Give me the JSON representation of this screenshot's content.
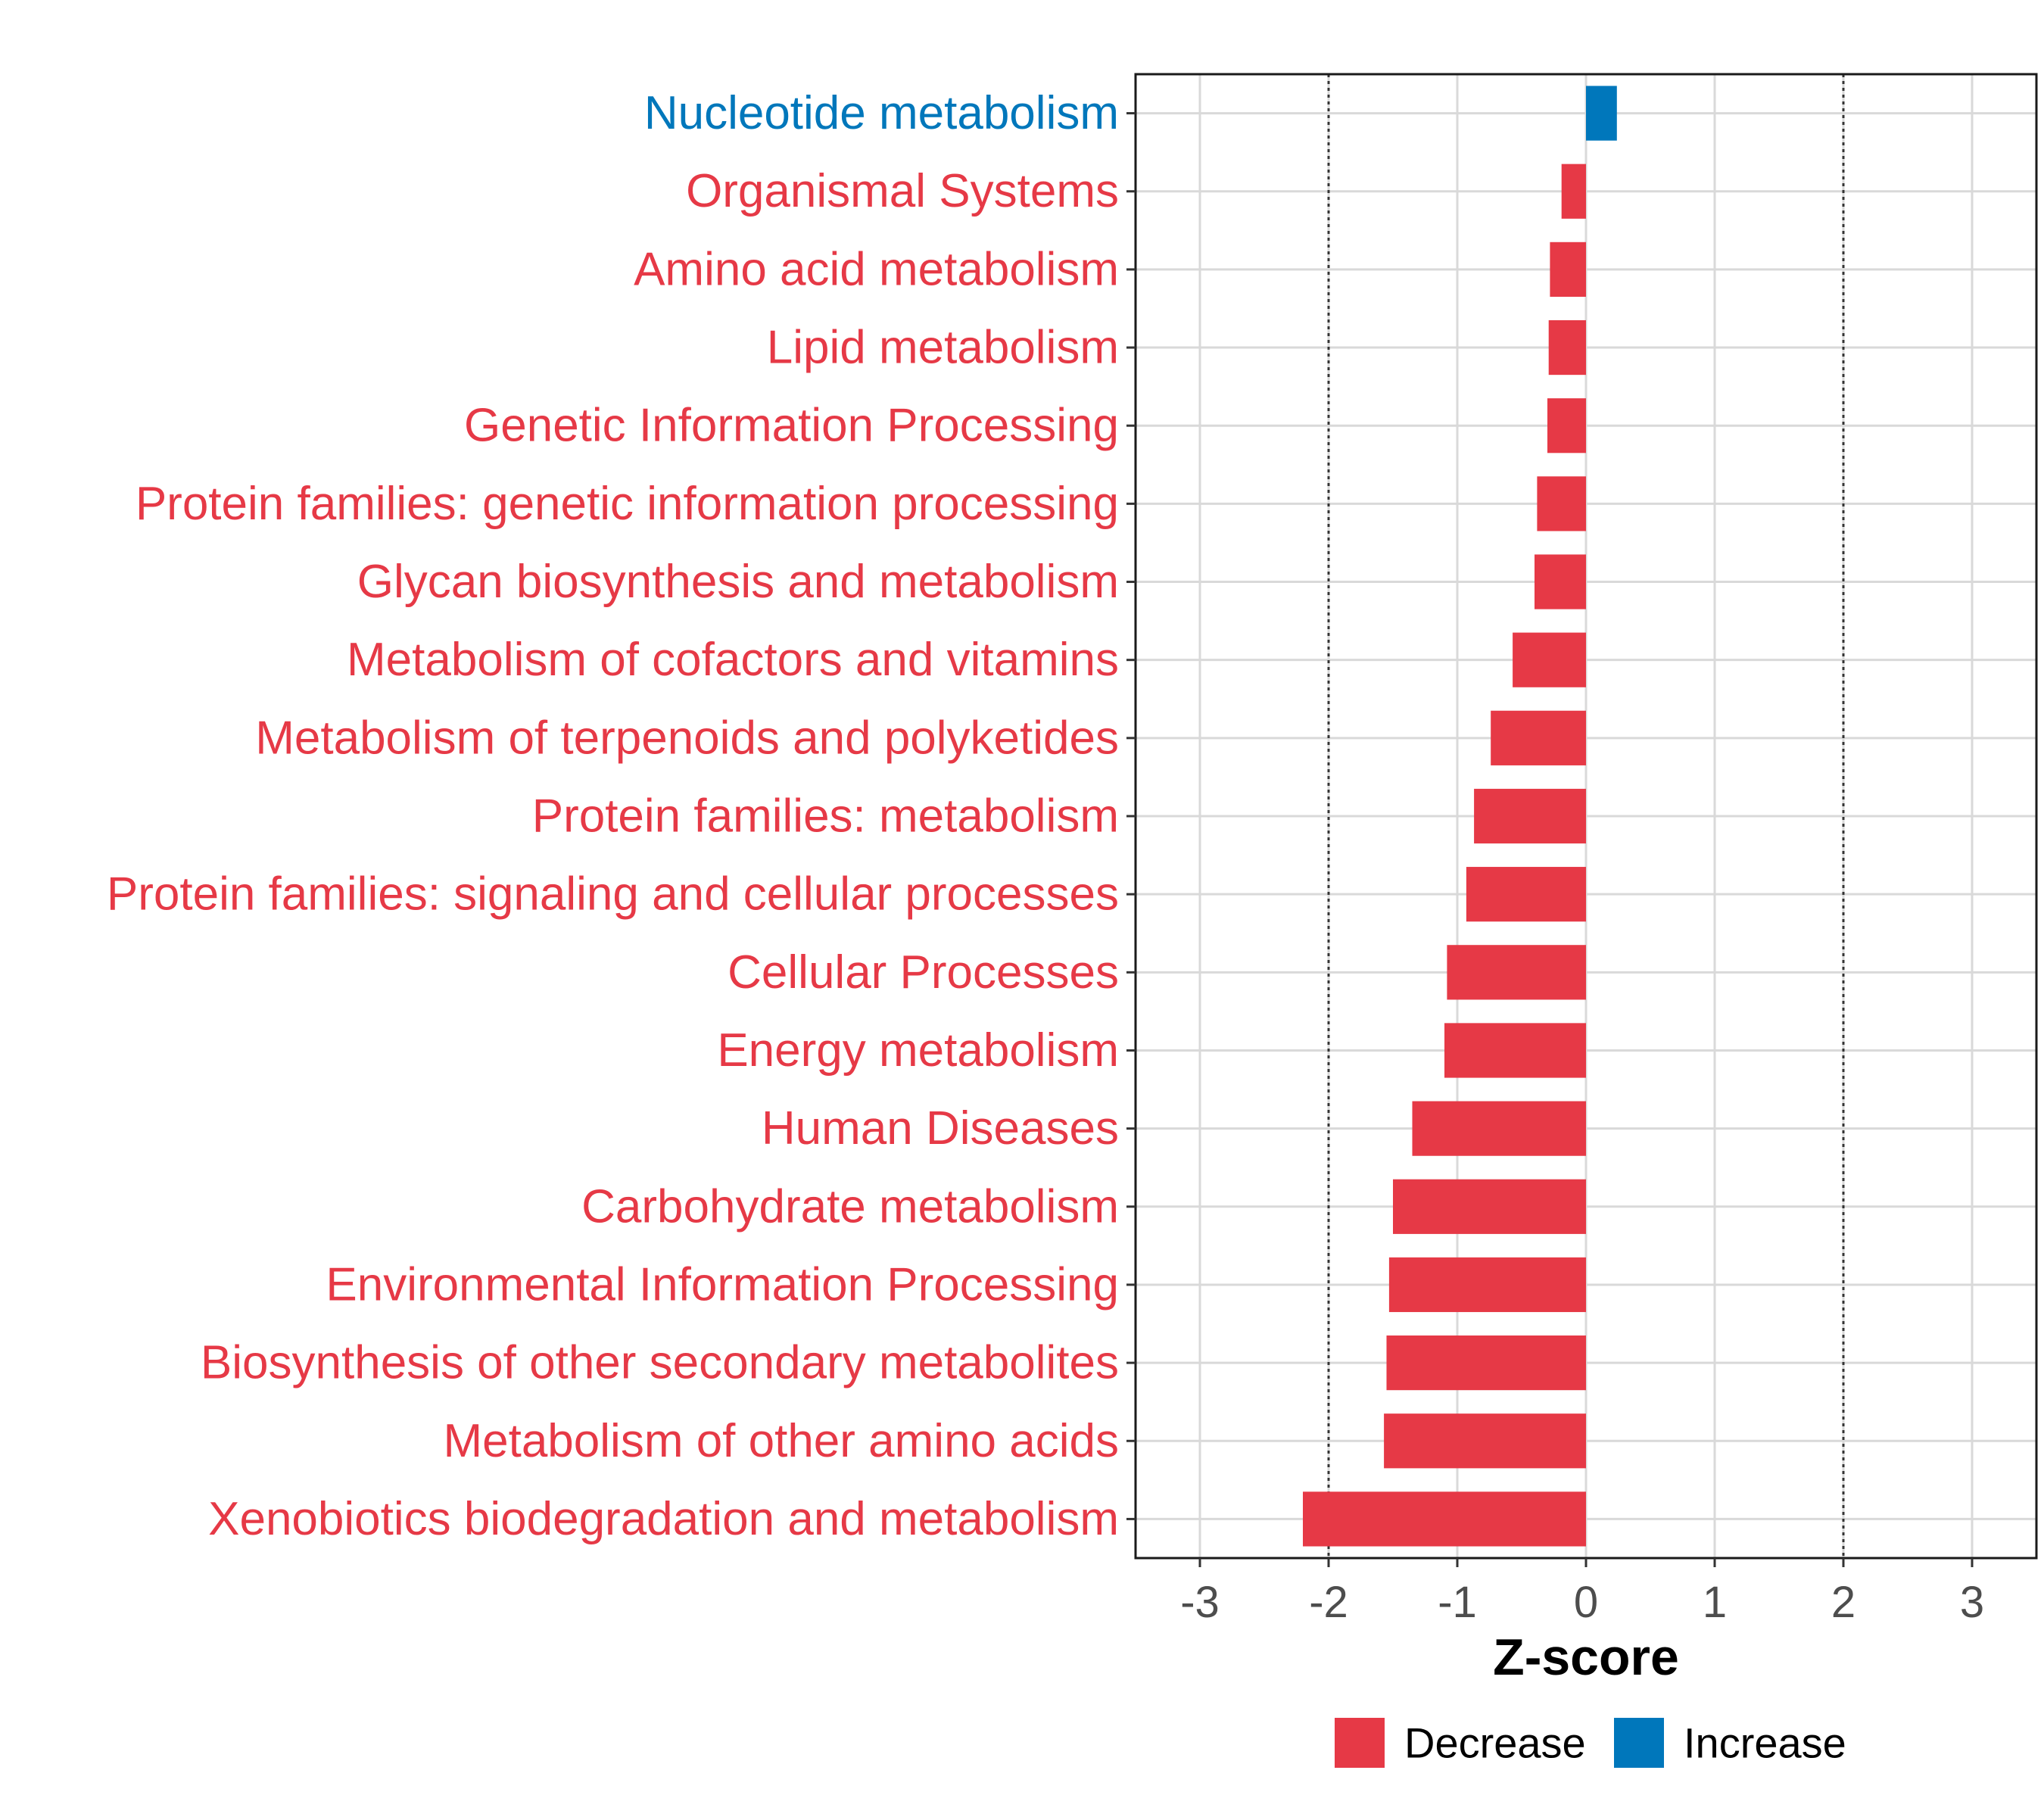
{
  "chart_data": {
    "type": "bar",
    "orientation": "horizontal",
    "title": "",
    "xlabel": "Z-score",
    "ylabel": "",
    "xlim": [
      -3.5,
      3.5
    ],
    "x_ticks": [
      -3,
      -2,
      -1,
      0,
      1,
      2,
      3
    ],
    "x_tick_labels": [
      "-3",
      "-2",
      "-1",
      "0",
      "1",
      "2",
      "3"
    ],
    "reference_lines": [
      -2,
      2
    ],
    "grid": true,
    "categories": [
      "Nucleotide metabolism",
      "Organismal Systems",
      "Amino acid metabolism",
      "Lipid metabolism",
      "Genetic Information Processing",
      "Protein families: genetic information processing",
      "Glycan biosynthesis and metabolism",
      "Metabolism of cofactors and vitamins",
      "Metabolism of terpenoids and polyketides",
      "Protein families: metabolism",
      "Protein families: signaling and cellular processes",
      "Cellular Processes",
      "Energy metabolism",
      "Human Diseases",
      "Carbohydrate metabolism",
      "Environmental Information Processing",
      "Biosynthesis of other secondary metabolites",
      "Metabolism of other amino acids",
      "Xenobiotics biodegradation and metabolism"
    ],
    "values": [
      0.24,
      -0.19,
      -0.28,
      -0.29,
      -0.3,
      -0.38,
      -0.4,
      -0.57,
      -0.74,
      -0.87,
      -0.93,
      -1.08,
      -1.1,
      -1.35,
      -1.5,
      -1.53,
      -1.55,
      -1.57,
      -2.2
    ],
    "groups": [
      "Increase",
      "Decrease",
      "Decrease",
      "Decrease",
      "Decrease",
      "Decrease",
      "Decrease",
      "Decrease",
      "Decrease",
      "Decrease",
      "Decrease",
      "Decrease",
      "Decrease",
      "Decrease",
      "Decrease",
      "Decrease",
      "Decrease",
      "Decrease",
      "Decrease"
    ],
    "legend": {
      "position": "bottom",
      "entries": [
        {
          "label": "Decrease",
          "color": "#E63946"
        },
        {
          "label": "Increase",
          "color": "#0077BB"
        }
      ]
    }
  }
}
